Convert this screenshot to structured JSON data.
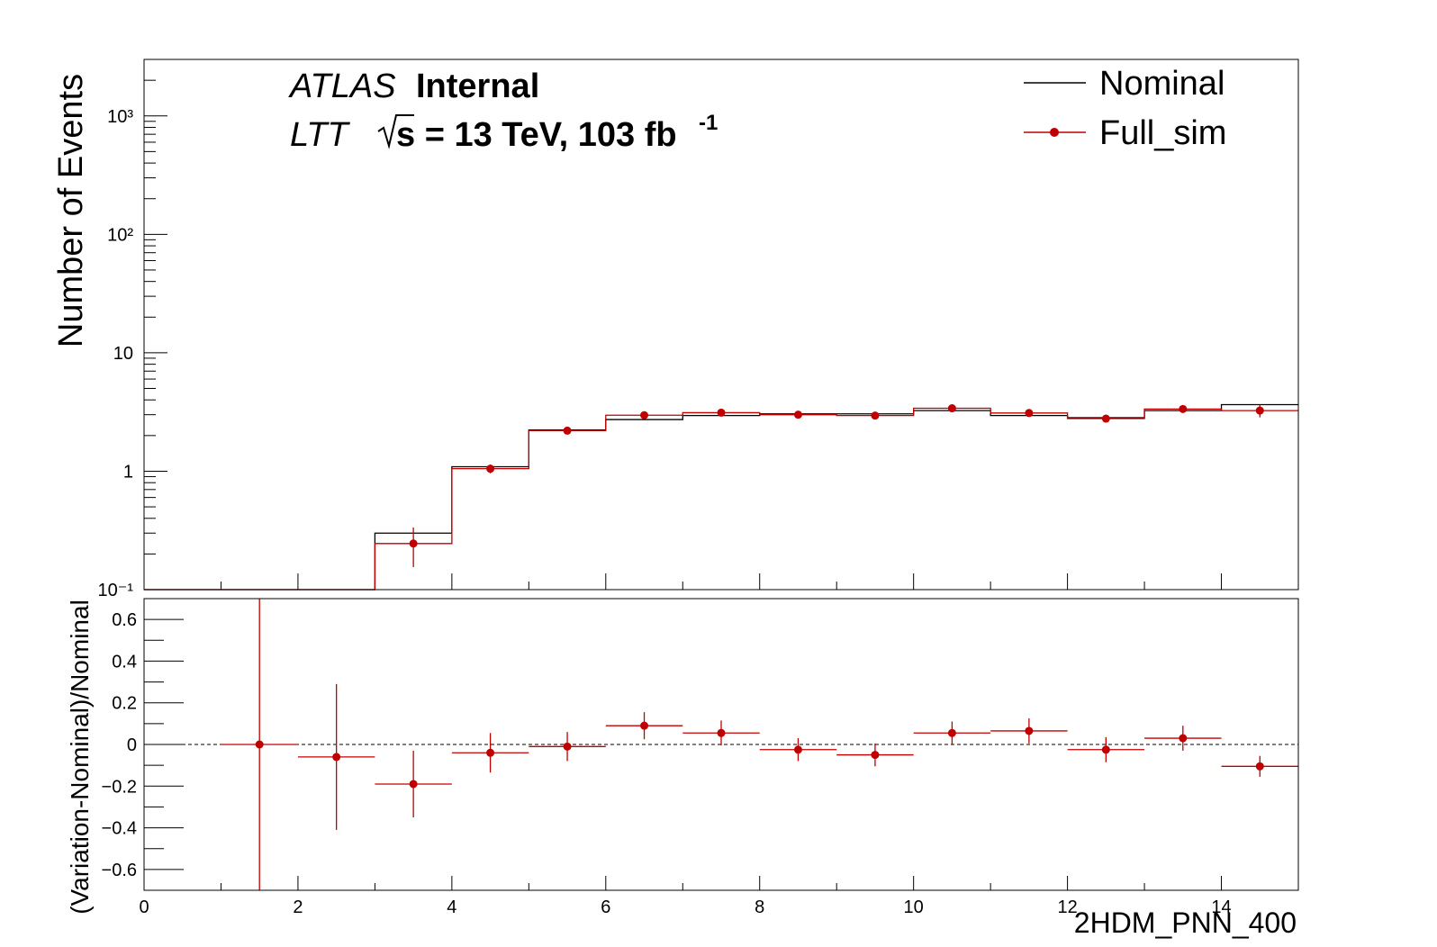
{
  "header": {
    "atlas": "ATLAS",
    "internal": "Internal",
    "channel": "LTT",
    "energy_lumi": "s = 13 TeV, 103 fb",
    "lumi_exp": "-1"
  },
  "legend": {
    "nominal": "Nominal",
    "full_sim": "Full_sim"
  },
  "colors": {
    "nominal": "#000000",
    "full_sim": "#c00000",
    "axes": "#000000"
  },
  "chart_data": [
    {
      "type": "step-histogram",
      "panel": "top",
      "ylabel": "Number of Events",
      "yscale": "log",
      "ylim": [
        0.1,
        3000
      ],
      "xlim": [
        0,
        15
      ],
      "ytick_labels": [
        "10⁻¹",
        "1",
        "10",
        "10²",
        "10³"
      ],
      "ytick_values": [
        0.1,
        1,
        10,
        100,
        1000
      ],
      "bin_edges": [
        0,
        1,
        2,
        3,
        4,
        5,
        6,
        7,
        8,
        9,
        10,
        11,
        12,
        13,
        14,
        15
      ],
      "series": [
        {
          "name": "Nominal",
          "values": [
            0.1,
            0.1,
            0.1,
            0.3,
            1.09,
            2.23,
            2.73,
            2.95,
            3.05,
            3.05,
            3.25,
            2.95,
            2.83,
            3.25,
            3.65
          ]
        },
        {
          "name": "Full_sim",
          "values": [
            0.1,
            0.1,
            0.1,
            0.245,
            1.05,
            2.2,
            2.97,
            3.12,
            3.0,
            2.95,
            3.4,
            3.1,
            2.78,
            3.35,
            3.25
          ],
          "errors": [
            0,
            0,
            0,
            0.09,
            0.09,
            0.1,
            0.15,
            0.15,
            0.12,
            0.12,
            0.15,
            0.15,
            0.12,
            0.15,
            0.4
          ]
        }
      ]
    },
    {
      "type": "scatter-ratio",
      "panel": "bottom",
      "ylabel": "(Variation-Nominal)/Nominal",
      "xlabel": "2HDM_PNN_400",
      "ylim": [
        -0.7,
        0.7
      ],
      "xlim": [
        0,
        15
      ],
      "ytick_labels": [
        "−0.6",
        "−0.4",
        "−0.2",
        "0",
        "0.2",
        "0.4",
        "0.6"
      ],
      "ytick_values": [
        -0.6,
        -0.4,
        -0.2,
        0,
        0.2,
        0.4,
        0.6
      ],
      "xtick_labels": [
        "0",
        "2",
        "4",
        "6",
        "8",
        "10",
        "12",
        "14"
      ],
      "xtick_values": [
        0,
        2,
        4,
        6,
        8,
        10,
        12,
        14
      ],
      "series": [
        {
          "name": "Full_sim",
          "x": [
            1.5,
            2.5,
            3.5,
            4.5,
            5.5,
            6.5,
            7.5,
            8.5,
            9.5,
            10.5,
            11.5,
            12.5,
            13.5,
            14.5
          ],
          "values": [
            0.0,
            -0.06,
            -0.19,
            -0.04,
            -0.01,
            0.09,
            0.055,
            -0.025,
            -0.05,
            0.055,
            0.065,
            -0.025,
            0.03,
            -0.105
          ],
          "errors": [
            0.7,
            0.35,
            0.16,
            0.095,
            0.07,
            0.065,
            0.06,
            0.055,
            0.055,
            0.055,
            0.06,
            0.06,
            0.06,
            0.05
          ]
        }
      ]
    }
  ]
}
